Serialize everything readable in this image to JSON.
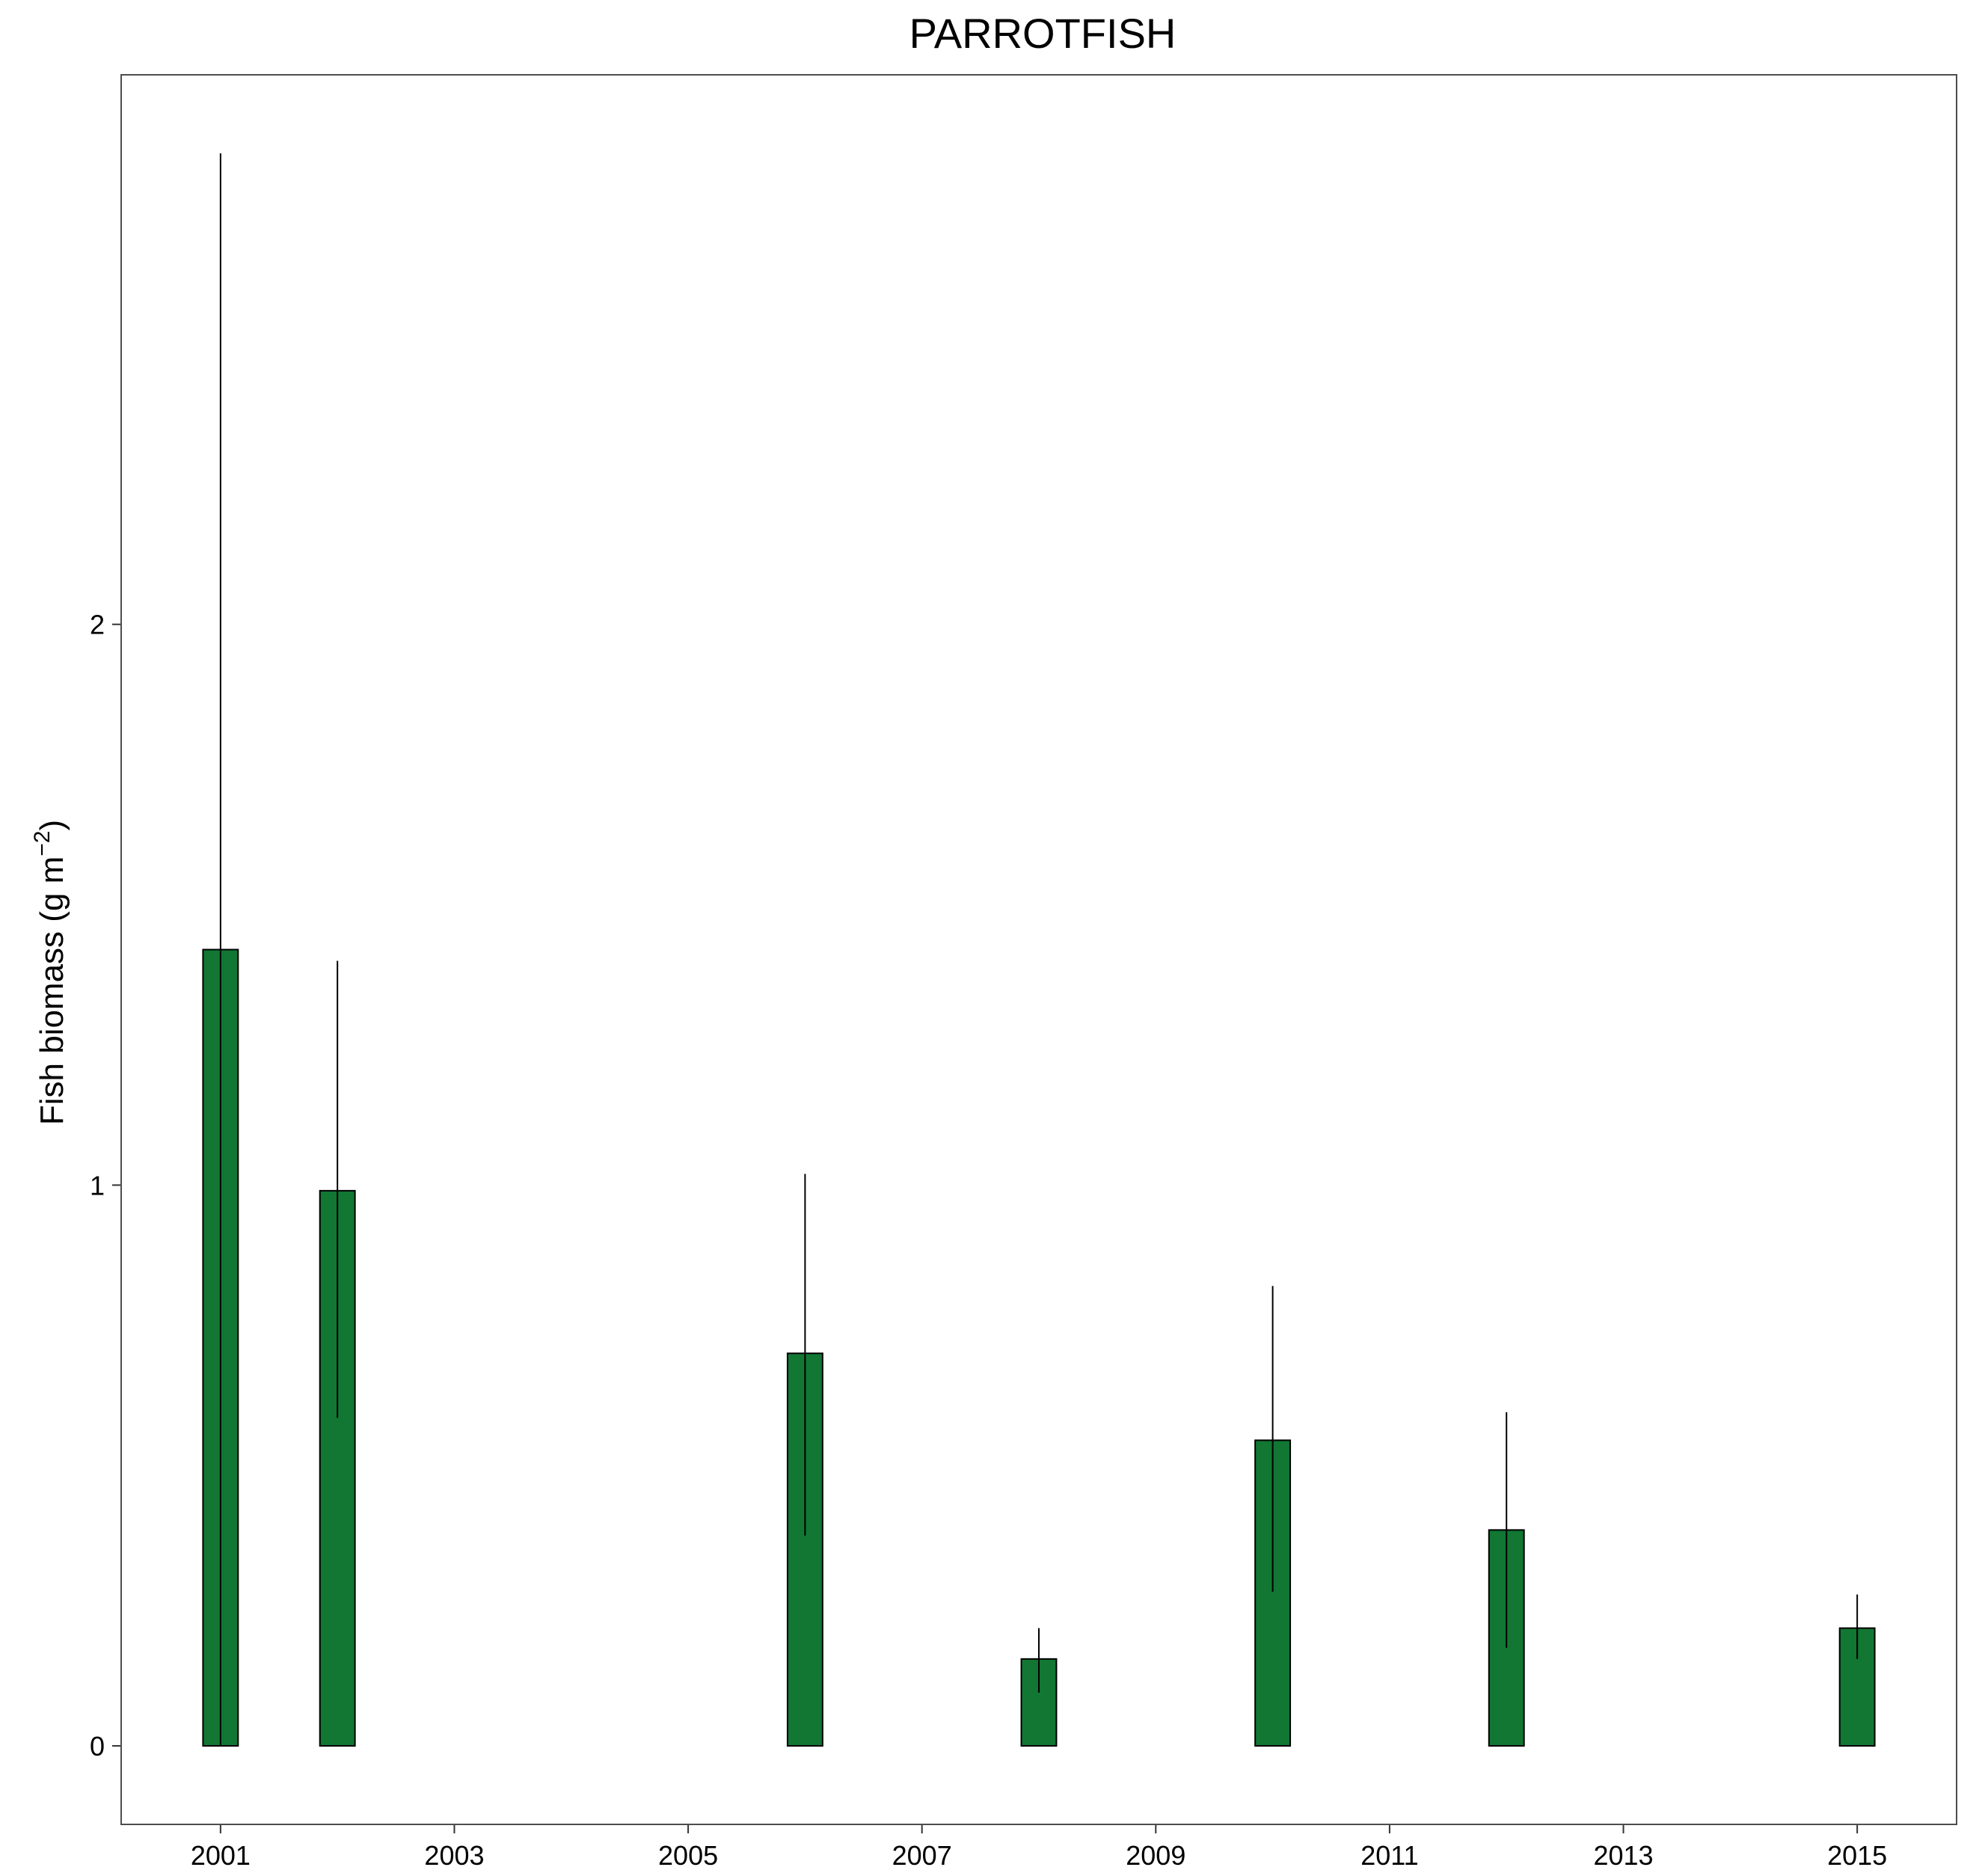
{
  "chart_data": {
    "type": "bar",
    "title": "PARROTFISH",
    "xlabel": "",
    "ylabel": {
      "main": "Fish biomass (g m",
      "superscript": "−2",
      "closing": ")"
    },
    "x": [
      2001,
      2002,
      2006,
      2008,
      2010,
      2012,
      2015
    ],
    "values": [
      1.42,
      0.99,
      0.7,
      0.155,
      0.545,
      0.385,
      0.21
    ],
    "error_bars": {
      "lower": [
        0.0,
        0.585,
        0.375,
        0.095,
        0.275,
        0.175,
        0.155
      ],
      "upper": [
        2.84,
        1.4,
        1.02,
        0.21,
        0.82,
        0.595,
        0.27
      ]
    },
    "xlim": [
      2000.15,
      2015.85
    ],
    "ylim": [
      -0.14,
      2.98
    ],
    "x_ticks": [
      "2001",
      "2003",
      "2005",
      "2007",
      "2009",
      "2011",
      "2013",
      "2015"
    ],
    "y_ticks": [
      "0",
      "1",
      "2"
    ],
    "grid": false,
    "legend": "none",
    "bar_fill": "#117733",
    "bar_outline": "#000000",
    "panel_border": "#4d4d4d"
  }
}
